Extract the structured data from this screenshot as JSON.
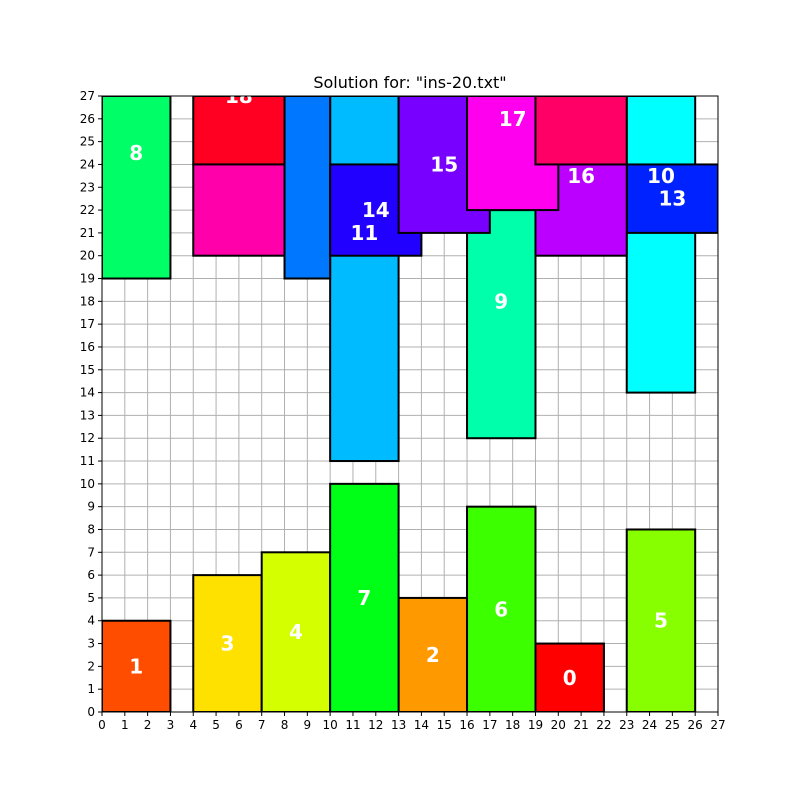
{
  "chart_data": {
    "type": "rect-packing",
    "title": "Solution for: \"ins-20.txt\"",
    "xlim": [
      0,
      27
    ],
    "ylim": [
      0,
      27
    ],
    "x_ticks": [
      0,
      1,
      2,
      3,
      4,
      5,
      6,
      7,
      8,
      9,
      10,
      11,
      12,
      13,
      14,
      15,
      16,
      17,
      18,
      19,
      20,
      21,
      22,
      23,
      24,
      25,
      26,
      27
    ],
    "y_ticks": [
      0,
      1,
      2,
      3,
      4,
      5,
      6,
      7,
      8,
      9,
      10,
      11,
      12,
      13,
      14,
      15,
      16,
      17,
      18,
      19,
      20,
      21,
      22,
      23,
      24,
      25,
      26,
      27
    ],
    "grid": true,
    "rectangles": [
      {
        "id": "0",
        "x": 19,
        "y": 0,
        "w": 3,
        "h": 3,
        "color": "#ff0000"
      },
      {
        "id": "1",
        "x": 0,
        "y": 0,
        "w": 3,
        "h": 4,
        "color": "#ff4d00"
      },
      {
        "id": "2",
        "x": 13,
        "y": 0,
        "w": 3,
        "h": 5,
        "color": "#ff9900"
      },
      {
        "id": "3",
        "x": 4,
        "y": 0,
        "w": 3,
        "h": 6,
        "color": "#ffe100"
      },
      {
        "id": "4",
        "x": 7,
        "y": 0,
        "w": 3,
        "h": 7,
        "color": "#d4ff00"
      },
      {
        "id": "5",
        "x": 23,
        "y": 0,
        "w": 3,
        "h": 8,
        "color": "#88ff00"
      },
      {
        "id": "6",
        "x": 16,
        "y": 0,
        "w": 3,
        "h": 9,
        "color": "#3cff00"
      },
      {
        "id": "7",
        "x": 10,
        "y": 0,
        "w": 3,
        "h": 10,
        "color": "#00ff16"
      },
      {
        "id": "8",
        "x": 0,
        "y": 19,
        "w": 3,
        "h": 8,
        "color": "#00ff66"
      },
      {
        "id": "9",
        "x": 16,
        "y": 12,
        "w": 3,
        "h": 10,
        "color": "#00ffaa"
      },
      {
        "id": "10",
        "x": 23,
        "y": 14,
        "w": 3,
        "h": 13,
        "color": "#00ffff"
      },
      {
        "id": "11",
        "x": 10,
        "y": 11,
        "w": 3,
        "h": 16,
        "color": "#00bbff"
      },
      {
        "id": "12",
        "x": 8,
        "y": 19,
        "w": 2,
        "h": 8,
        "color": "#0077ff",
        "partial_label": true
      },
      {
        "id": "13",
        "x": 23,
        "y": 21,
        "w": 4,
        "h": 3,
        "color": "#0022ff"
      },
      {
        "id": "14",
        "x": 10,
        "y": 20,
        "w": 4,
        "h": 4,
        "color": "#2200ff"
      },
      {
        "id": "15",
        "x": 13,
        "y": 21,
        "w": 4,
        "h": 6,
        "color": "#7700ff"
      },
      {
        "id": "16",
        "x": 19,
        "y": 20,
        "w": 4,
        "h": 4,
        "color": "#bb00ff"
      },
      {
        "id": "17",
        "x": 16,
        "y": 22,
        "w": 4,
        "h": 5,
        "color": "#ff00ee"
      },
      {
        "id": "18",
        "x": 4,
        "y": 24,
        "w": 4,
        "h": 3,
        "color": "#ff0022"
      },
      {
        "id": "19",
        "x": 4,
        "y": 20,
        "w": 4,
        "h": 4,
        "color": "#ff00aa"
      },
      {
        "id": "20",
        "x": 19,
        "y": 24,
        "w": 4,
        "h": 3,
        "color": "#ff0066"
      }
    ],
    "labels": [
      {
        "text": "0",
        "x": 20.5,
        "y": 1.5
      },
      {
        "text": "1",
        "x": 1.5,
        "y": 2.0
      },
      {
        "text": "2",
        "x": 14.5,
        "y": 2.5
      },
      {
        "text": "3",
        "x": 5.5,
        "y": 3.0
      },
      {
        "text": "4",
        "x": 8.5,
        "y": 3.5
      },
      {
        "text": "5",
        "x": 24.5,
        "y": 4.0
      },
      {
        "text": "6",
        "x": 17.5,
        "y": 4.5
      },
      {
        "text": "7",
        "x": 11.5,
        "y": 5.0
      },
      {
        "text": "8",
        "x": 1.5,
        "y": 24.5
      },
      {
        "text": "9",
        "x": 17.5,
        "y": 18.0
      },
      {
        "text": "10",
        "x": 24.5,
        "y": 23.5
      },
      {
        "text": "11",
        "x": 11.5,
        "y": 21.0
      },
      {
        "text": "13",
        "x": 25.0,
        "y": 22.5
      },
      {
        "text": "14",
        "x": 12.0,
        "y": 22.0
      },
      {
        "text": "15",
        "x": 15.0,
        "y": 24.0
      },
      {
        "text": "16",
        "x": 21.0,
        "y": 23.5
      },
      {
        "text": "17",
        "x": 18.0,
        "y": 26.0
      },
      {
        "text": "18",
        "x": 6.0,
        "y": 27.0
      }
    ]
  }
}
